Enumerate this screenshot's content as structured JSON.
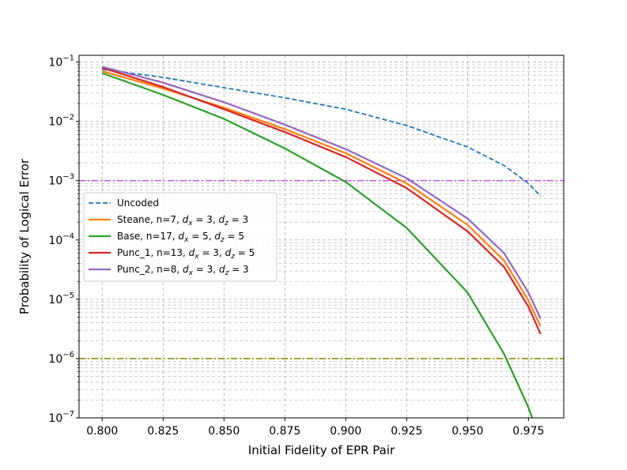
{
  "chart_data": {
    "type": "line",
    "xlabel": "Initial Fidelity of EPR Pair",
    "ylabel": "Probability of Logical Error",
    "y_scale": "log",
    "xlim": [
      0.7905,
      0.9895
    ],
    "ylim": [
      1e-07,
      0.13
    ],
    "grid": true,
    "legend_position": "center-left",
    "x_ticks": [
      "0.800",
      "0.825",
      "0.850",
      "0.875",
      "0.900",
      "0.925",
      "0.950",
      "0.975"
    ],
    "y_ticks": [
      {
        "base": "10",
        "exp": "−1",
        "value": 0.1
      },
      {
        "base": "10",
        "exp": "−2",
        "value": 0.01
      },
      {
        "base": "10",
        "exp": "−3",
        "value": 0.001
      },
      {
        "base": "10",
        "exp": "−4",
        "value": 0.0001
      },
      {
        "base": "10",
        "exp": "−5",
        "value": 1e-05
      },
      {
        "base": "10",
        "exp": "−6",
        "value": 1e-06
      },
      {
        "base": "10",
        "exp": "−7",
        "value": 1e-07
      }
    ],
    "reference_lines": [
      {
        "y": 0.001,
        "color": "#c25fe0",
        "style": "dash-dot"
      },
      {
        "y": 1e-06,
        "color": "#8c8c00",
        "style": "dash-dot"
      }
    ],
    "series": [
      {
        "name": "Uncoded",
        "color": "#1f77b4",
        "style": "dashed",
        "x": [
          0.8,
          0.825,
          0.85,
          0.875,
          0.9,
          0.925,
          0.95,
          0.965,
          0.975,
          0.98
        ],
        "y": [
          0.075,
          0.055,
          0.037,
          0.025,
          0.016,
          0.0085,
          0.0037,
          0.0018,
          0.0009,
          0.00055
        ]
      },
      {
        "name": "Steane, n=7, d_x = 3, d_z = 3",
        "label_parts": [
          "Steane, n=7, ",
          "d",
          "x",
          " = 3, ",
          "d",
          "z",
          " = 3"
        ],
        "color": "#ff7f0e",
        "style": "solid",
        "x": [
          0.8,
          0.825,
          0.85,
          0.875,
          0.9,
          0.925,
          0.95,
          0.965,
          0.975,
          0.98
        ],
        "y": [
          0.07,
          0.036,
          0.017,
          0.0074,
          0.0029,
          0.0009,
          0.00018,
          4.5e-05,
          9.5e-06,
          3.5e-06
        ]
      },
      {
        "name": "Base, n=17, d_x = 5, d_z = 5",
        "label_parts": [
          "Base, n=17, ",
          "d",
          "x",
          " = 5, ",
          "d",
          "z",
          " = 5"
        ],
        "color": "#2ca02c",
        "style": "solid",
        "x": [
          0.8,
          0.825,
          0.85,
          0.875,
          0.9,
          0.925,
          0.95,
          0.965,
          0.975,
          0.9765
        ],
        "y": [
          0.065,
          0.028,
          0.011,
          0.0035,
          0.00095,
          0.00016,
          1.3e-05,
          1.2e-06,
          1.5e-07,
          1e-07
        ]
      },
      {
        "name": "Punc_1, n=13, d_x = 3, d_z = 5",
        "label_parts": [
          "Punc_1, n=13, ",
          "d",
          "x",
          " = 3, ",
          "d",
          "z",
          " = 5"
        ],
        "color": "#d62728",
        "style": "solid",
        "x": [
          0.8,
          0.825,
          0.85,
          0.875,
          0.9,
          0.925,
          0.95,
          0.965,
          0.975,
          0.98
        ],
        "y": [
          0.08,
          0.038,
          0.016,
          0.0066,
          0.0025,
          0.00075,
          0.00014,
          3.5e-05,
          7.5e-06,
          2.6e-06
        ]
      },
      {
        "name": "Punc_2, n=8, d_x = 3, d_z = 3",
        "label_parts": [
          "Punc_2, n=8, ",
          "d",
          "x",
          " = 3, ",
          "d",
          "z",
          " = 3"
        ],
        "color": "#9467bd",
        "style": "solid",
        "x": [
          0.8,
          0.825,
          0.85,
          0.875,
          0.9,
          0.925,
          0.95,
          0.965,
          0.975,
          0.98
        ],
        "y": [
          0.083,
          0.045,
          0.021,
          0.0088,
          0.0034,
          0.0011,
          0.00023,
          6e-05,
          1.3e-05,
          4.7e-06
        ]
      }
    ]
  }
}
